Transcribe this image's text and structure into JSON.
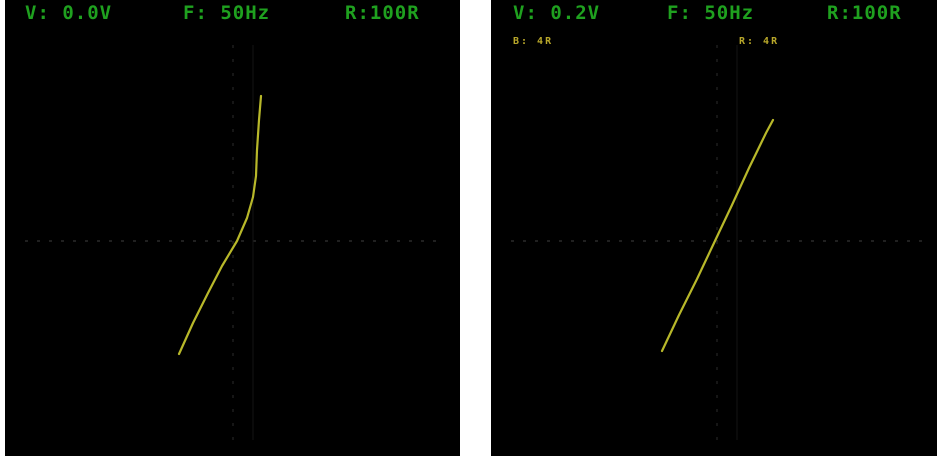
{
  "screens": [
    {
      "id": "left",
      "voltage": "V: 0.0V",
      "freq": "F: 50Hz",
      "range": "R:100R",
      "markers": [
        "",
        ""
      ],
      "trace_color": "#b8b82a"
    },
    {
      "id": "right",
      "voltage": "V: 0.2V",
      "freq": "F: 50Hz",
      "range": "R:100R",
      "markers": [
        "B: 4R",
        "R: 4R"
      ],
      "trace_color": "#b8b82a"
    }
  ],
  "colors": {
    "background": "#000000",
    "readout": "#1fa11f",
    "grid": "#222222",
    "trace": "#b8b82a"
  }
}
